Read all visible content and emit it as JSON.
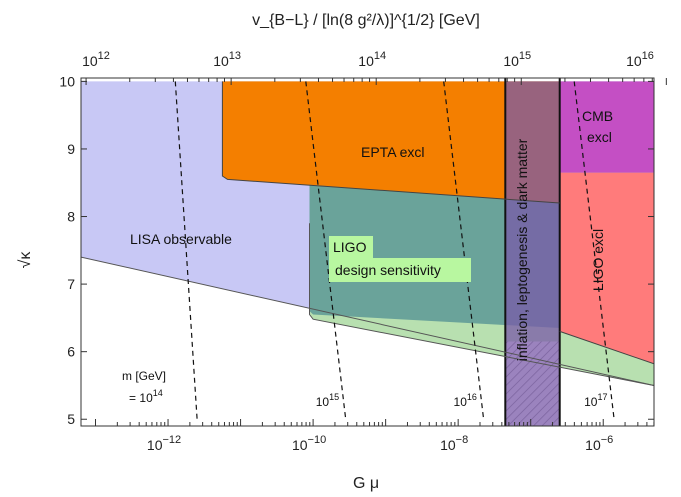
{
  "chart_data": {
    "type": "area",
    "xlabel": "G μ",
    "ylabel": "√κ",
    "top_xlabel": "v_{B−L} / [ln(8 g²/λ)]^{1/2} [GeV]",
    "xscale": "log",
    "xlim_log10": [
      -13.2,
      -5.3
    ],
    "ylim": [
      4.9,
      10.05
    ],
    "x_ticks": [
      {
        "exp": -12,
        "label_base": "10",
        "label_exp": "−12"
      },
      {
        "exp": -10,
        "label_base": "10",
        "label_exp": "−10"
      },
      {
        "exp": -8,
        "label_base": "10",
        "label_exp": "−8"
      },
      {
        "exp": -6,
        "label_base": "10",
        "label_exp": "−6"
      }
    ],
    "y_ticks": [
      {
        "value": 5,
        "label": "5"
      },
      {
        "value": 6,
        "label": "6"
      },
      {
        "value": 7,
        "label": "7"
      },
      {
        "value": 8,
        "label": "8"
      },
      {
        "value": 9,
        "label": "9"
      },
      {
        "value": 10,
        "label": "10"
      }
    ],
    "top_ticks": [
      {
        "logGmu": -13.13,
        "label_base": "10",
        "label_exp": "12"
      },
      {
        "logGmu": -11.13,
        "label_base": "10",
        "label_exp": "13"
      },
      {
        "logGmu": -9.13,
        "label_base": "10",
        "label_exp": "14"
      },
      {
        "logGmu": -7.13,
        "label_base": "10",
        "label_exp": "15"
      },
      {
        "logGmu": -5.13,
        "label_base": "10",
        "label_exp": "16"
      }
    ],
    "regions": [
      {
        "name": "LISA observable",
        "color": "#c8c8f5",
        "points": [
          [
            -13.2,
            7.4
          ],
          [
            -5.3,
            5.5
          ],
          [
            -5.3,
            10.0
          ],
          [
            -13.2,
            10.0
          ]
        ]
      },
      {
        "name": "LIGO design sensitivity",
        "color": "#b8e0b0",
        "points": [
          [
            -10.05,
            7.9
          ],
          [
            -10.05,
            6.55
          ],
          [
            -10.0,
            6.48
          ],
          [
            -5.3,
            5.5
          ],
          [
            -5.3,
            8.8
          ],
          [
            -10.05,
            8.8
          ]
        ]
      },
      {
        "name": "EPTA excl",
        "color": "#f47f00",
        "points": [
          [
            -11.25,
            10.0
          ],
          [
            -11.25,
            8.6
          ],
          [
            -11.18,
            8.55
          ],
          [
            -6.6,
            8.2
          ],
          [
            -6.6,
            10.0
          ]
        ]
      },
      {
        "name": "EPTA LIGO overlap",
        "color": "#6aa39a",
        "points": [
          [
            -10.05,
            8.47
          ],
          [
            -6.6,
            8.2
          ],
          [
            -6.6,
            6.35
          ],
          [
            -10.0,
            6.55
          ],
          [
            -10.05,
            6.6
          ]
        ]
      },
      {
        "name": "LIGO excl",
        "color": "#ff7b7b",
        "points": [
          [
            -6.6,
            8.65
          ],
          [
            -5.3,
            8.65
          ],
          [
            -5.3,
            5.82
          ],
          [
            -6.6,
            6.3
          ]
        ]
      },
      {
        "name": "CMB excl",
        "color": "#c44fc4",
        "points": [
          [
            -6.6,
            10.0
          ],
          [
            -5.3,
            10.0
          ],
          [
            -5.3,
            8.65
          ],
          [
            -6.6,
            8.65
          ]
        ]
      },
      {
        "name": "inflation, leptogenesis & dark matter",
        "color": "#7a5aa8",
        "points": [
          [
            -7.35,
            10.0
          ],
          [
            -6.6,
            10.0
          ],
          [
            -6.6,
            4.9
          ],
          [
            -7.35,
            4.9
          ]
        ]
      }
    ],
    "boundary_lines": [
      {
        "points": [
          [
            -13.2,
            7.4
          ],
          [
            -5.3,
            5.5
          ]
        ],
        "color": "#555555"
      },
      {
        "points": [
          [
            -10.05,
            7.9
          ],
          [
            -10.05,
            6.55
          ],
          [
            -10.0,
            6.48
          ],
          [
            -5.3,
            5.5
          ]
        ],
        "color": "#555555"
      },
      {
        "points": [
          [
            -11.25,
            10.0
          ],
          [
            -11.25,
            8.6
          ],
          [
            -11.18,
            8.55
          ],
          [
            -6.6,
            8.2
          ]
        ],
        "color": "#444444"
      },
      {
        "points": [
          [
            -6.6,
            6.3
          ],
          [
            -5.3,
            5.82
          ]
        ],
        "color": "#444444"
      }
    ],
    "mass_contours": [
      {
        "label_base": "10",
        "label_exp": "14",
        "points": [
          [
            -11.9,
            10.0
          ],
          [
            -11.6,
            5.0
          ]
        ]
      },
      {
        "label_base": "10",
        "label_exp": "15",
        "points": [
          [
            -10.1,
            10.0
          ],
          [
            -9.55,
            5.0
          ]
        ]
      },
      {
        "label_base": "10",
        "label_exp": "16",
        "points": [
          [
            -8.2,
            10.0
          ],
          [
            -7.65,
            5.0
          ]
        ]
      },
      {
        "label_base": "10",
        "label_exp": "17",
        "points": [
          [
            -6.4,
            10.0
          ],
          [
            -5.85,
            5.0
          ]
        ]
      }
    ],
    "mass_label": "m [GeV]",
    "mass_label_prefix": "= ",
    "labels": {
      "lisa": "LISA observable",
      "epta": "EPTA excl",
      "ligo_design_1": "LIGO",
      "ligo_design_2": "design sensitivity",
      "ligo_excl": "LIGO excl",
      "cmb_1": "CMB",
      "cmb_2": "excl",
      "inflation": "inflation, leptogenesis & dark matter"
    }
  }
}
